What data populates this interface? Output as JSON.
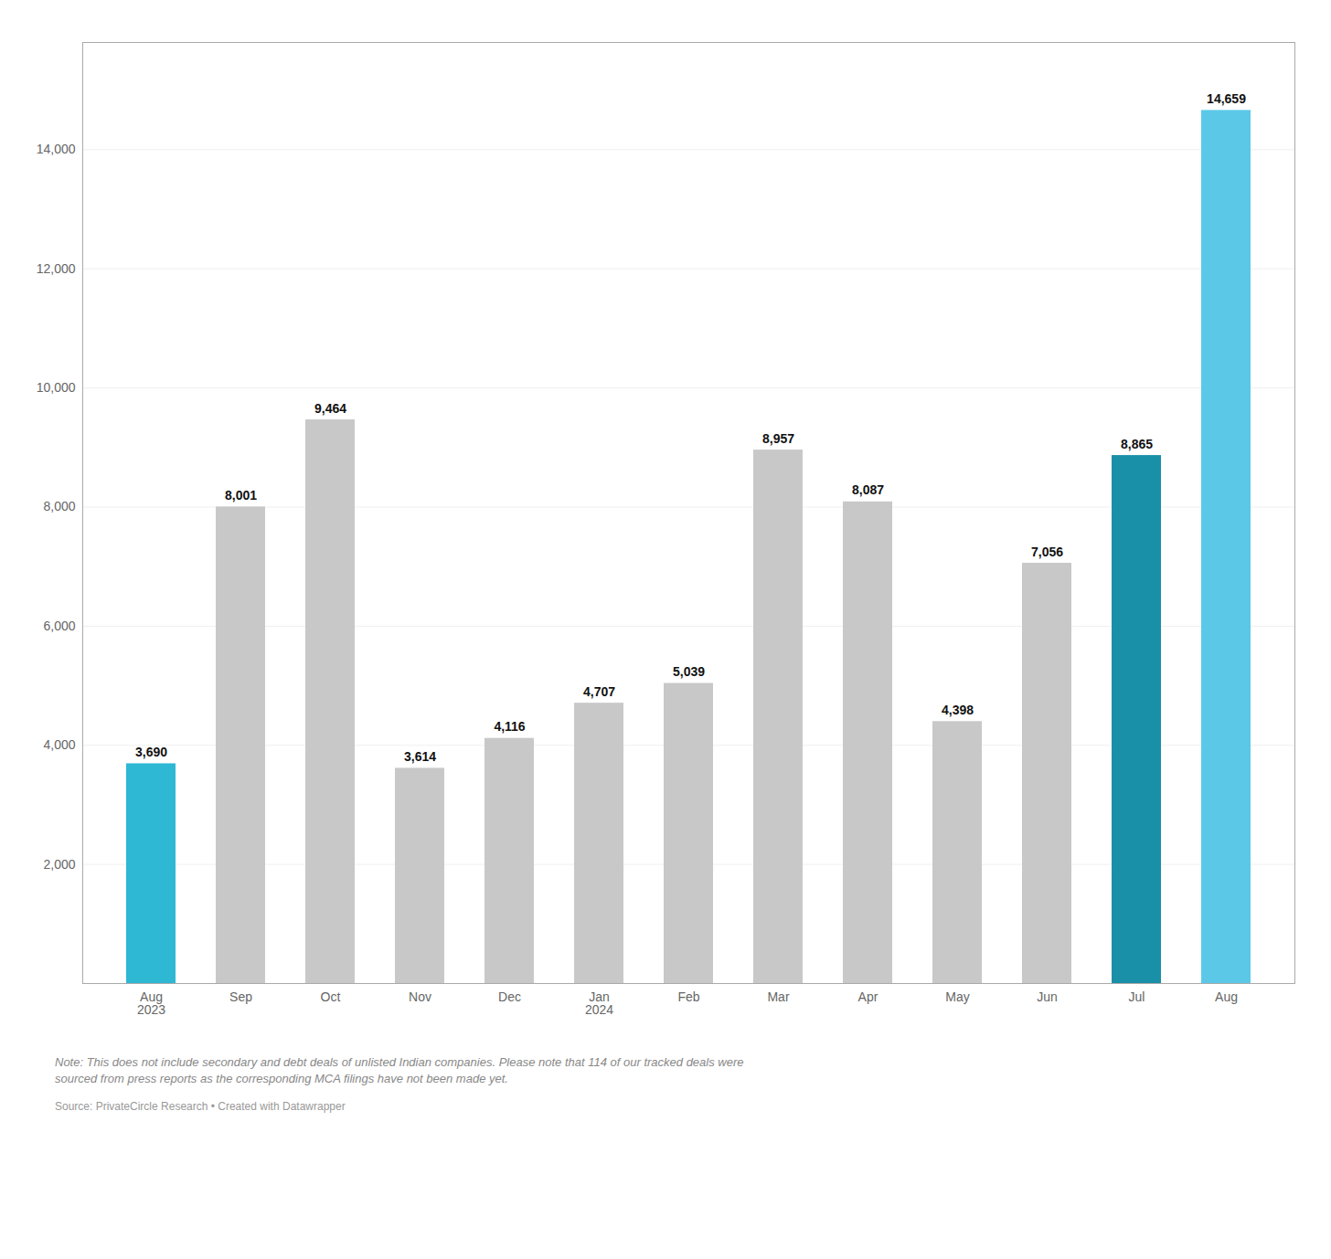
{
  "chart_data": {
    "type": "bar",
    "categories": [
      "Aug\n2023",
      "Sep",
      "Oct",
      "Nov",
      "Dec",
      "Jan\n2024",
      "Feb",
      "Mar",
      "Apr",
      "May",
      "Jun",
      "Jul",
      "Aug"
    ],
    "values": [
      3690,
      8001,
      9464,
      3614,
      4116,
      4707,
      5039,
      8957,
      8087,
      4398,
      7056,
      8865,
      14659
    ],
    "value_labels": [
      "3,690",
      "8,001",
      "9,464",
      "3,614",
      "4,116",
      "4,707",
      "5,039",
      "8,957",
      "8,087",
      "4,398",
      "7,056",
      "8,865",
      "14,659"
    ],
    "data_labels": true,
    "colors": [
      "#2eb8d4",
      "#c8c8c8",
      "#c8c8c8",
      "#c8c8c8",
      "#c8c8c8",
      "#c8c8c8",
      "#c8c8c8",
      "#c8c8c8",
      "#c8c8c8",
      "#c8c8c8",
      "#c8c8c8",
      "#1a8fa8",
      "#5bc8e8"
    ],
    "ylim": [
      0,
      15800
    ],
    "yticks": [
      {
        "value": 2000,
        "label": "2,000"
      },
      {
        "value": 4000,
        "label": "4,000"
      },
      {
        "value": 6000,
        "label": "6,000"
      },
      {
        "value": 8000,
        "label": "8,000"
      },
      {
        "value": 10000,
        "label": "10,000"
      },
      {
        "value": 12000,
        "label": "12,000"
      },
      {
        "value": 14000,
        "label": "14,000"
      }
    ],
    "grid": true,
    "annotations": [
      "Note: This does not include secondary and debt deals of unlisted Indian companies. Please note that 114 of our tracked deals were\nsourced from press reports as the corresponding MCA filings have not been made yet.",
      "Source: PrivateCircle Research • Created with Datawrapper"
    ]
  }
}
